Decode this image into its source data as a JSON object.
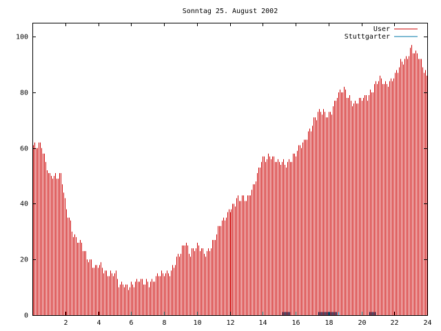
{
  "chart_data": {
    "type": "bar",
    "title": "Sonntag 25. August 2002",
    "xlabel": "",
    "ylabel": "",
    "xlim": [
      0,
      24
    ],
    "ylim": [
      0,
      105
    ],
    "xticks": [
      "2",
      "4",
      "6",
      "8",
      "10",
      "12",
      "14",
      "16",
      "18",
      "20",
      "22",
      "24"
    ],
    "yticks": [
      "0",
      "20",
      "40",
      "60",
      "80",
      "100"
    ],
    "grid": false,
    "legend_position": "top-right",
    "series": [
      {
        "name": "User",
        "color": "#cc0000",
        "anchors_x": [
          0,
          0.1,
          0.25,
          0.5,
          0.75,
          1.0,
          1.25,
          1.5,
          1.75,
          2.0,
          2.25,
          2.5,
          2.75,
          3.0,
          3.25,
          3.5,
          3.75,
          4.0,
          4.5,
          5.0,
          5.25,
          5.5,
          6.0,
          6.5,
          7.0,
          7.5,
          8.0,
          8.5,
          9.0,
          9.3,
          9.5,
          10.0,
          10.5,
          11.0,
          11.5,
          12.0,
          12.5,
          13.0,
          13.5,
          14.0,
          14.5,
          15.0,
          15.5,
          16.0,
          16.5,
          17.0,
          17.5,
          18.0,
          18.5,
          19.0,
          19.5,
          20.0,
          20.5,
          21.0,
          21.5,
          22.0,
          22.5,
          22.8,
          23.0,
          23.3,
          23.5,
          23.8,
          24.0
        ],
        "anchors_y": [
          62,
          60,
          60,
          61,
          56,
          51,
          50,
          49,
          50,
          40,
          35,
          28,
          26,
          25,
          22,
          20,
          17,
          17,
          16,
          15,
          10,
          11,
          11,
          12,
          12,
          13,
          15,
          17,
          22,
          27,
          23,
          24,
          22,
          27,
          33,
          39,
          41,
          42,
          47,
          56,
          58,
          54,
          55,
          58,
          62,
          69,
          73,
          72,
          78,
          81,
          76,
          77,
          80,
          84,
          83,
          86,
          91,
          93,
          97,
          94,
          92,
          88,
          85
        ]
      },
      {
        "name": "Stuttgarter",
        "color": "#0077aa",
        "anchors_x": [
          15.2,
          15.7,
          17.4,
          18.6,
          20.5,
          20.9
        ],
        "anchors_y": [
          1,
          1,
          1,
          1,
          1,
          1
        ]
      }
    ]
  }
}
